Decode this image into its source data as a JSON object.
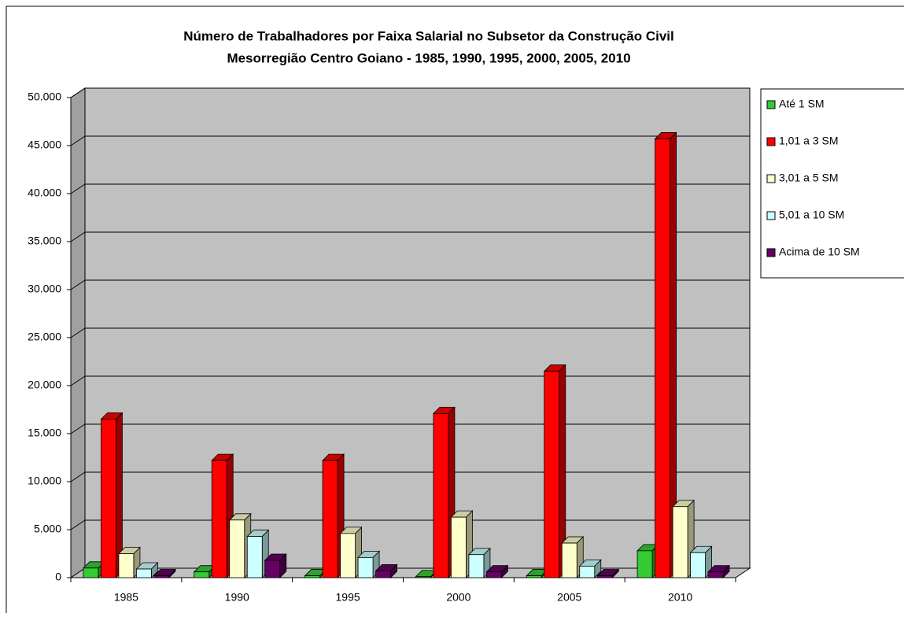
{
  "chart_data": {
    "type": "bar3d",
    "title": "Número de Trabalhadores por Faixa Salarial no Subsetor da Construção Civil",
    "subtitle": "Mesorregião Centro Goiano - 1985, 1990, 1995, 2000, 2005, 2010",
    "categories": [
      "1985",
      "1990",
      "1995",
      "2000",
      "2005",
      "2010"
    ],
    "series": [
      {
        "name": "Até 1 SM",
        "color": "#33cc33",
        "values": [
          1000,
          600,
          200,
          100,
          200,
          2800
        ]
      },
      {
        "name": "1,01 a 3 SM",
        "color": "#ff0000",
        "values": [
          16500,
          12200,
          12200,
          17100,
          21500,
          45700
        ]
      },
      {
        "name": "3,01 a 5 SM",
        "color": "#ffffcc",
        "values": [
          2500,
          6000,
          4600,
          6300,
          3600,
          7400
        ]
      },
      {
        "name": "5,01 a 10 SM",
        "color": "#ccffff",
        "values": [
          900,
          4300,
          2100,
          2400,
          1200,
          2600
        ]
      },
      {
        "name": "Acima de 10 SM",
        "color": "#660066",
        "values": [
          200,
          1800,
          700,
          600,
          200,
          600
        ]
      }
    ],
    "ylim": [
      0,
      50000
    ],
    "yticks": [
      0,
      {
        "value": 5000,
        "label": "5.000"
      },
      {
        "value": 10000,
        "label": "10.000"
      },
      {
        "value": 15000,
        "label": "15.000"
      },
      {
        "value": 20000,
        "label": "20.000"
      },
      {
        "value": 25000,
        "label": "25.000"
      },
      {
        "value": 30000,
        "label": "30.000"
      },
      {
        "value": 35000,
        "label": "35.000"
      },
      {
        "value": 40000,
        "label": "40.000"
      },
      {
        "value": 45000,
        "label": "45.000"
      },
      {
        "value": 50000,
        "label": "50.000"
      }
    ],
    "grid": true,
    "legend": "right"
  }
}
